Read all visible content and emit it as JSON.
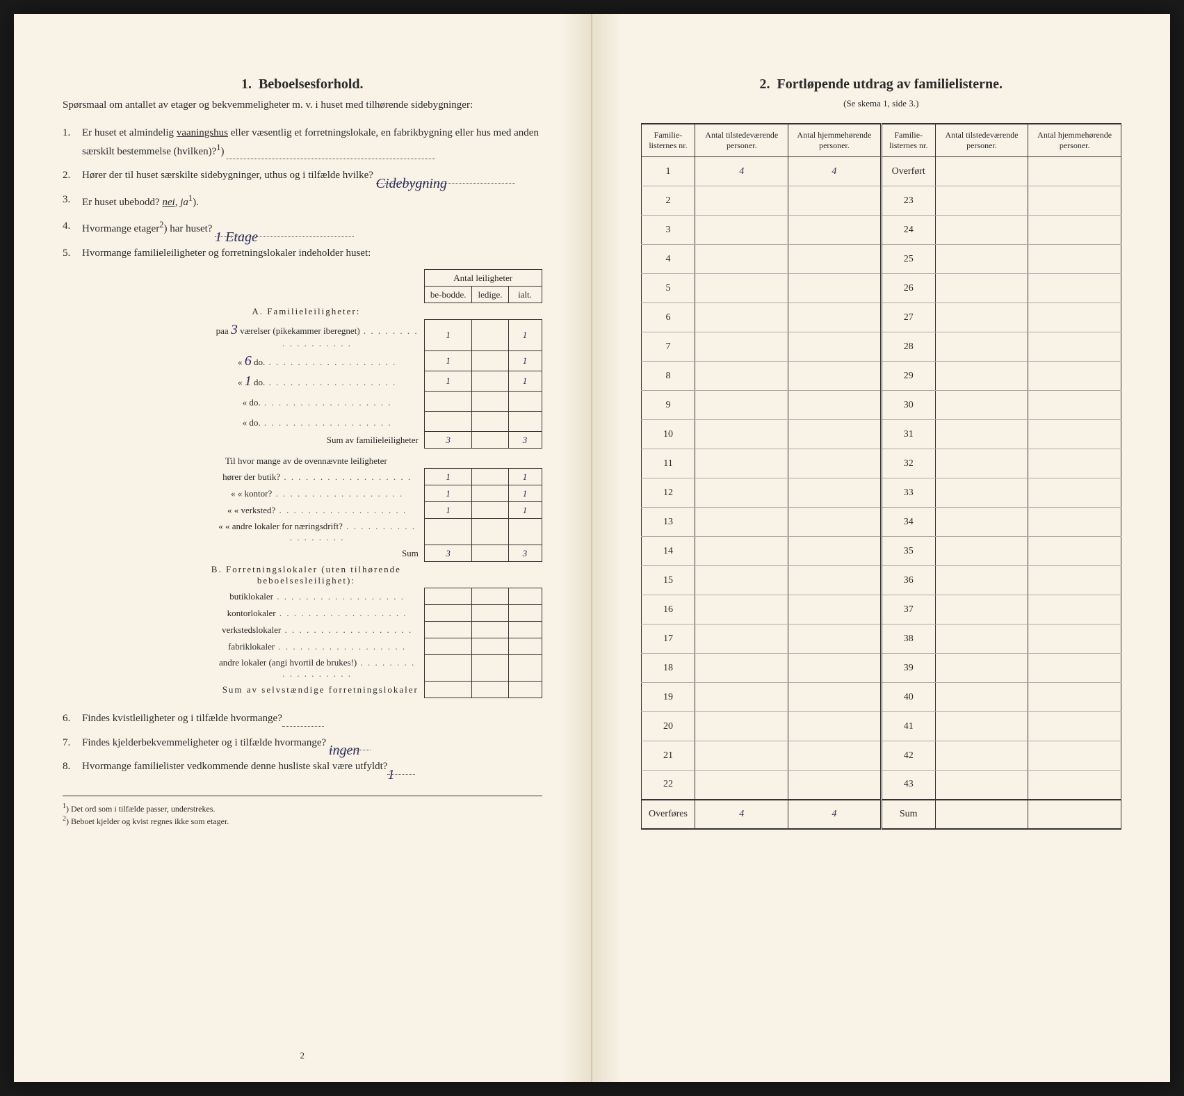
{
  "left": {
    "section_num": "1.",
    "section_title": "Beboelsesforhold.",
    "intro": "Spørsmaal om antallet av etager og bekvemmeligheter m. v. i huset med tilhørende sidebygninger:",
    "q1": {
      "num": "1.",
      "text_a": "Er huset et almindelig ",
      "underlined": "vaaningshus",
      "text_b": " eller væsentlig et forretningslokale, en fabrikbygning eller hus med anden særskilt bestemmelse (hvilken)?",
      "sup": "1",
      "answer_line": ""
    },
    "q2": {
      "num": "2.",
      "text": "Hører der til huset særskilte sidebygninger, uthus og i tilfælde hvilke?",
      "answer": "Cidebygning"
    },
    "q3": {
      "num": "3.",
      "text": "Er huset ubebodd? ",
      "nei": "nei,",
      "ja": "ja",
      "sup": "1",
      "after": ")."
    },
    "q4": {
      "num": "4.",
      "text": "Hvormange etager",
      "sup": "2",
      "text_b": ") har huset?",
      "answer": "1 Etage"
    },
    "q5": {
      "num": "5.",
      "text": "Hvormange familieleiligheter og forretningslokaler indeholder huset:"
    },
    "mini_table": {
      "header_main": "Antal leiligheter",
      "col1": "be-bodde.",
      "col2": "ledige.",
      "col3": "ialt."
    },
    "sectionA_label": "A. Familieleiligheter:",
    "rowsA": [
      {
        "prefix": "paa",
        "val": "3",
        "label": "værelser (pikekammer iberegnet)",
        "c1": "1",
        "c2": "",
        "c3": "1"
      },
      {
        "prefix": "«",
        "val": "6",
        "label": "do.",
        "c1": "1",
        "c2": "",
        "c3": "1"
      },
      {
        "prefix": "«",
        "val": "1",
        "label": "do.",
        "c1": "1",
        "c2": "",
        "c3": "1"
      },
      {
        "prefix": "«",
        "val": "",
        "label": "do.",
        "c1": "",
        "c2": "",
        "c3": ""
      },
      {
        "prefix": "«",
        "val": "",
        "label": "do.",
        "c1": "",
        "c2": "",
        "c3": ""
      }
    ],
    "sumA_label": "Sum av familieleiligheter",
    "sumA": {
      "c1": "3",
      "c2": "",
      "c3": "3"
    },
    "midQ": "Til hvor mange av de ovennævnte leiligheter",
    "rowsMid": [
      {
        "label": "hører der butik?",
        "c1": "1",
        "c2": "",
        "c3": "1"
      },
      {
        "label": "«      «   kontor?",
        "c1": "1",
        "c2": "",
        "c3": "1"
      },
      {
        "label": "«      «   verksted?",
        "c1": "1",
        "c2": "",
        "c3": "1"
      },
      {
        "label": "«      «   andre lokaler for næringsdrift?",
        "c1": "",
        "c2": "",
        "c3": ""
      }
    ],
    "sumMid_label": "Sum",
    "sumMid": {
      "c1": "3",
      "c2": "",
      "c3": "3"
    },
    "sectionB_label": "B. Forretningslokaler (uten tilhørende beboelsesleilighet):",
    "rowsB": [
      {
        "label": "butiklokaler",
        "c1": "",
        "c2": "",
        "c3": ""
      },
      {
        "label": "kontorlokaler",
        "c1": "",
        "c2": "",
        "c3": ""
      },
      {
        "label": "verkstedslokaler",
        "c1": "",
        "c2": "",
        "c3": ""
      },
      {
        "label": "fabriklokaler",
        "c1": "",
        "c2": "",
        "c3": ""
      },
      {
        "label": "andre lokaler (angi hvortil de brukes!)",
        "c1": "",
        "c2": "",
        "c3": ""
      }
    ],
    "sumB_label": "Sum av selvstændige forretningslokaler",
    "q6": {
      "num": "6.",
      "text": "Findes kvistleiligheter og i tilfælde hvormange?",
      "answer": ""
    },
    "q7": {
      "num": "7.",
      "text": "Findes kjelderbekvemmeligheter og i tilfælde hvormange?",
      "answer": "ingen"
    },
    "q8": {
      "num": "8.",
      "text": "Hvormange familielister vedkommende denne husliste skal være utfyldt?",
      "answer": "1"
    },
    "footnote1": "Det ord som i tilfælde passer, understrekes.",
    "footnote2": "Beboet kjelder og kvist regnes ikke som etager.",
    "page_num": "2"
  },
  "right": {
    "section_num": "2.",
    "section_title": "Fortløpende utdrag av familielisterne.",
    "subtitle": "(Se skema 1, side 3.)",
    "headers": {
      "h1": "Familie-listernes nr.",
      "h2": "Antal tilstedeværende personer.",
      "h3": "Antal hjemmehørende personer.",
      "h4": "Familie-listernes nr.",
      "h5": "Antal tilstedeværende personer.",
      "h6": "Antal hjemmehørende personer."
    },
    "overfort_label": "Overført",
    "rows_left_nums": [
      "1",
      "2",
      "3",
      "4",
      "5",
      "6",
      "7",
      "8",
      "9",
      "10",
      "11",
      "12",
      "13",
      "14",
      "15",
      "16",
      "17",
      "18",
      "19",
      "20",
      "21",
      "22"
    ],
    "rows_right_nums": [
      "23",
      "24",
      "25",
      "26",
      "27",
      "28",
      "29",
      "30",
      "31",
      "32",
      "33",
      "34",
      "35",
      "36",
      "37",
      "38",
      "39",
      "40",
      "41",
      "42",
      "43"
    ],
    "row1_data": {
      "c2": "4",
      "c3": "4"
    },
    "bottom_left_label": "Overføres",
    "bottom_right_label": "Sum",
    "bottom_data": {
      "c2": "4",
      "c3": "4"
    }
  }
}
